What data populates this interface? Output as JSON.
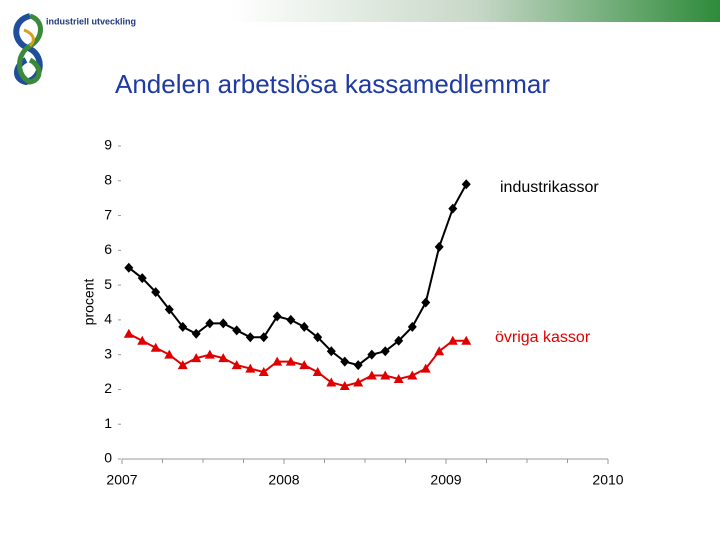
{
  "header": {
    "logo_text": "industriell utveckling"
  },
  "chart_data": {
    "type": "line",
    "title": "Andelen arbetslösa kassamedlemmar",
    "y_label": "procent",
    "x": [
      2007.042,
      2007.125,
      2007.208,
      2007.292,
      2007.375,
      2007.458,
      2007.542,
      2007.625,
      2007.708,
      2007.792,
      2007.875,
      2007.958,
      2008.042,
      2008.125,
      2008.208,
      2008.292,
      2008.375,
      2008.458,
      2008.542,
      2008.625,
      2008.708,
      2008.792,
      2008.875,
      2008.958,
      2009.042,
      2009.125
    ],
    "series": [
      {
        "name": "industrikassor",
        "color": "#000000",
        "marker": "diamond",
        "values": [
          5.5,
          5.2,
          4.8,
          4.3,
          3.8,
          3.6,
          3.9,
          3.9,
          3.7,
          3.5,
          3.5,
          4.1,
          4.0,
          3.8,
          3.5,
          3.1,
          2.8,
          2.7,
          3.0,
          3.1,
          3.4,
          3.8,
          4.5,
          6.1,
          7.2,
          7.9
        ]
      },
      {
        "name": "övriga kassor",
        "color": "#e00000",
        "marker": "triangle",
        "values": [
          3.6,
          3.4,
          3.2,
          3.0,
          2.7,
          2.9,
          3.0,
          2.9,
          2.7,
          2.6,
          2.5,
          2.8,
          2.8,
          2.7,
          2.5,
          2.2,
          2.1,
          2.2,
          2.4,
          2.4,
          2.3,
          2.4,
          2.6,
          3.1,
          3.4,
          3.4
        ]
      }
    ],
    "xlim": [
      2007,
      2010
    ],
    "xticks": [
      2007,
      2008,
      2009,
      2010
    ],
    "ylim": [
      0,
      9
    ],
    "yticks": [
      0,
      1,
      2,
      3,
      4,
      5,
      6,
      7,
      8,
      9
    ],
    "grid": false
  }
}
